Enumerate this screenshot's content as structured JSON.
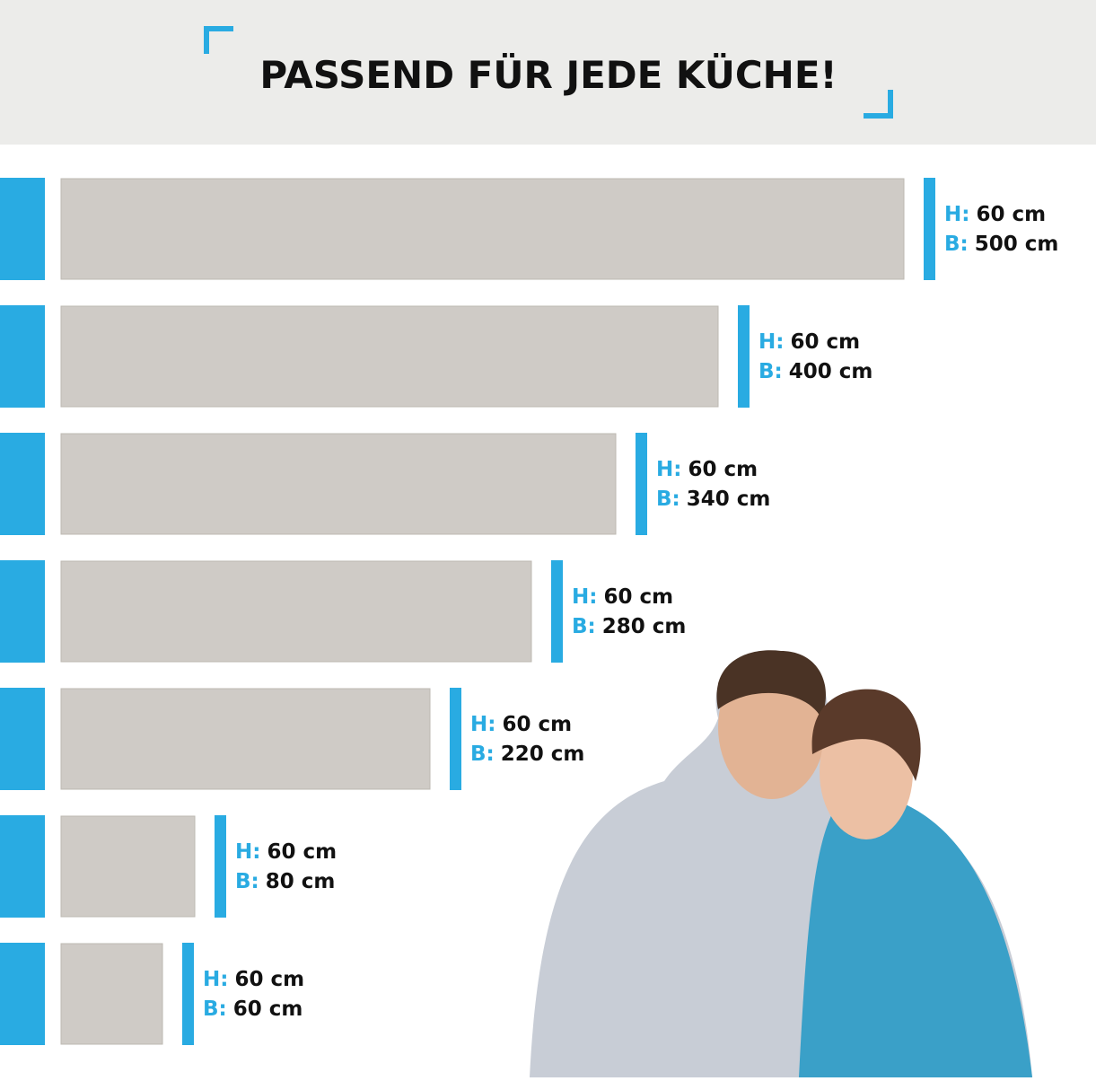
{
  "header": {
    "title": "PASSEND FÜR JEDE KÜCHE!"
  },
  "panels": [
    {
      "height_label": "H:",
      "height": "60 cm",
      "width_label": "B:",
      "width": "500 cm"
    },
    {
      "height_label": "H:",
      "height": "60 cm",
      "width_label": "B:",
      "width": "400 cm"
    },
    {
      "height_label": "H:",
      "height": "60 cm",
      "width_label": "B:",
      "width": "340 cm"
    },
    {
      "height_label": "H:",
      "height": "60 cm",
      "width_label": "B:",
      "width": "280 cm"
    },
    {
      "height_label": "H:",
      "height": "60 cm",
      "width_label": "B:",
      "width": "220 cm"
    },
    {
      "height_label": "H:",
      "height": "60 cm",
      "width_label": "B:",
      "width": "80 cm"
    },
    {
      "height_label": "H:",
      "height": "60 cm",
      "width_label": "B:",
      "width": "60 cm"
    }
  ]
}
